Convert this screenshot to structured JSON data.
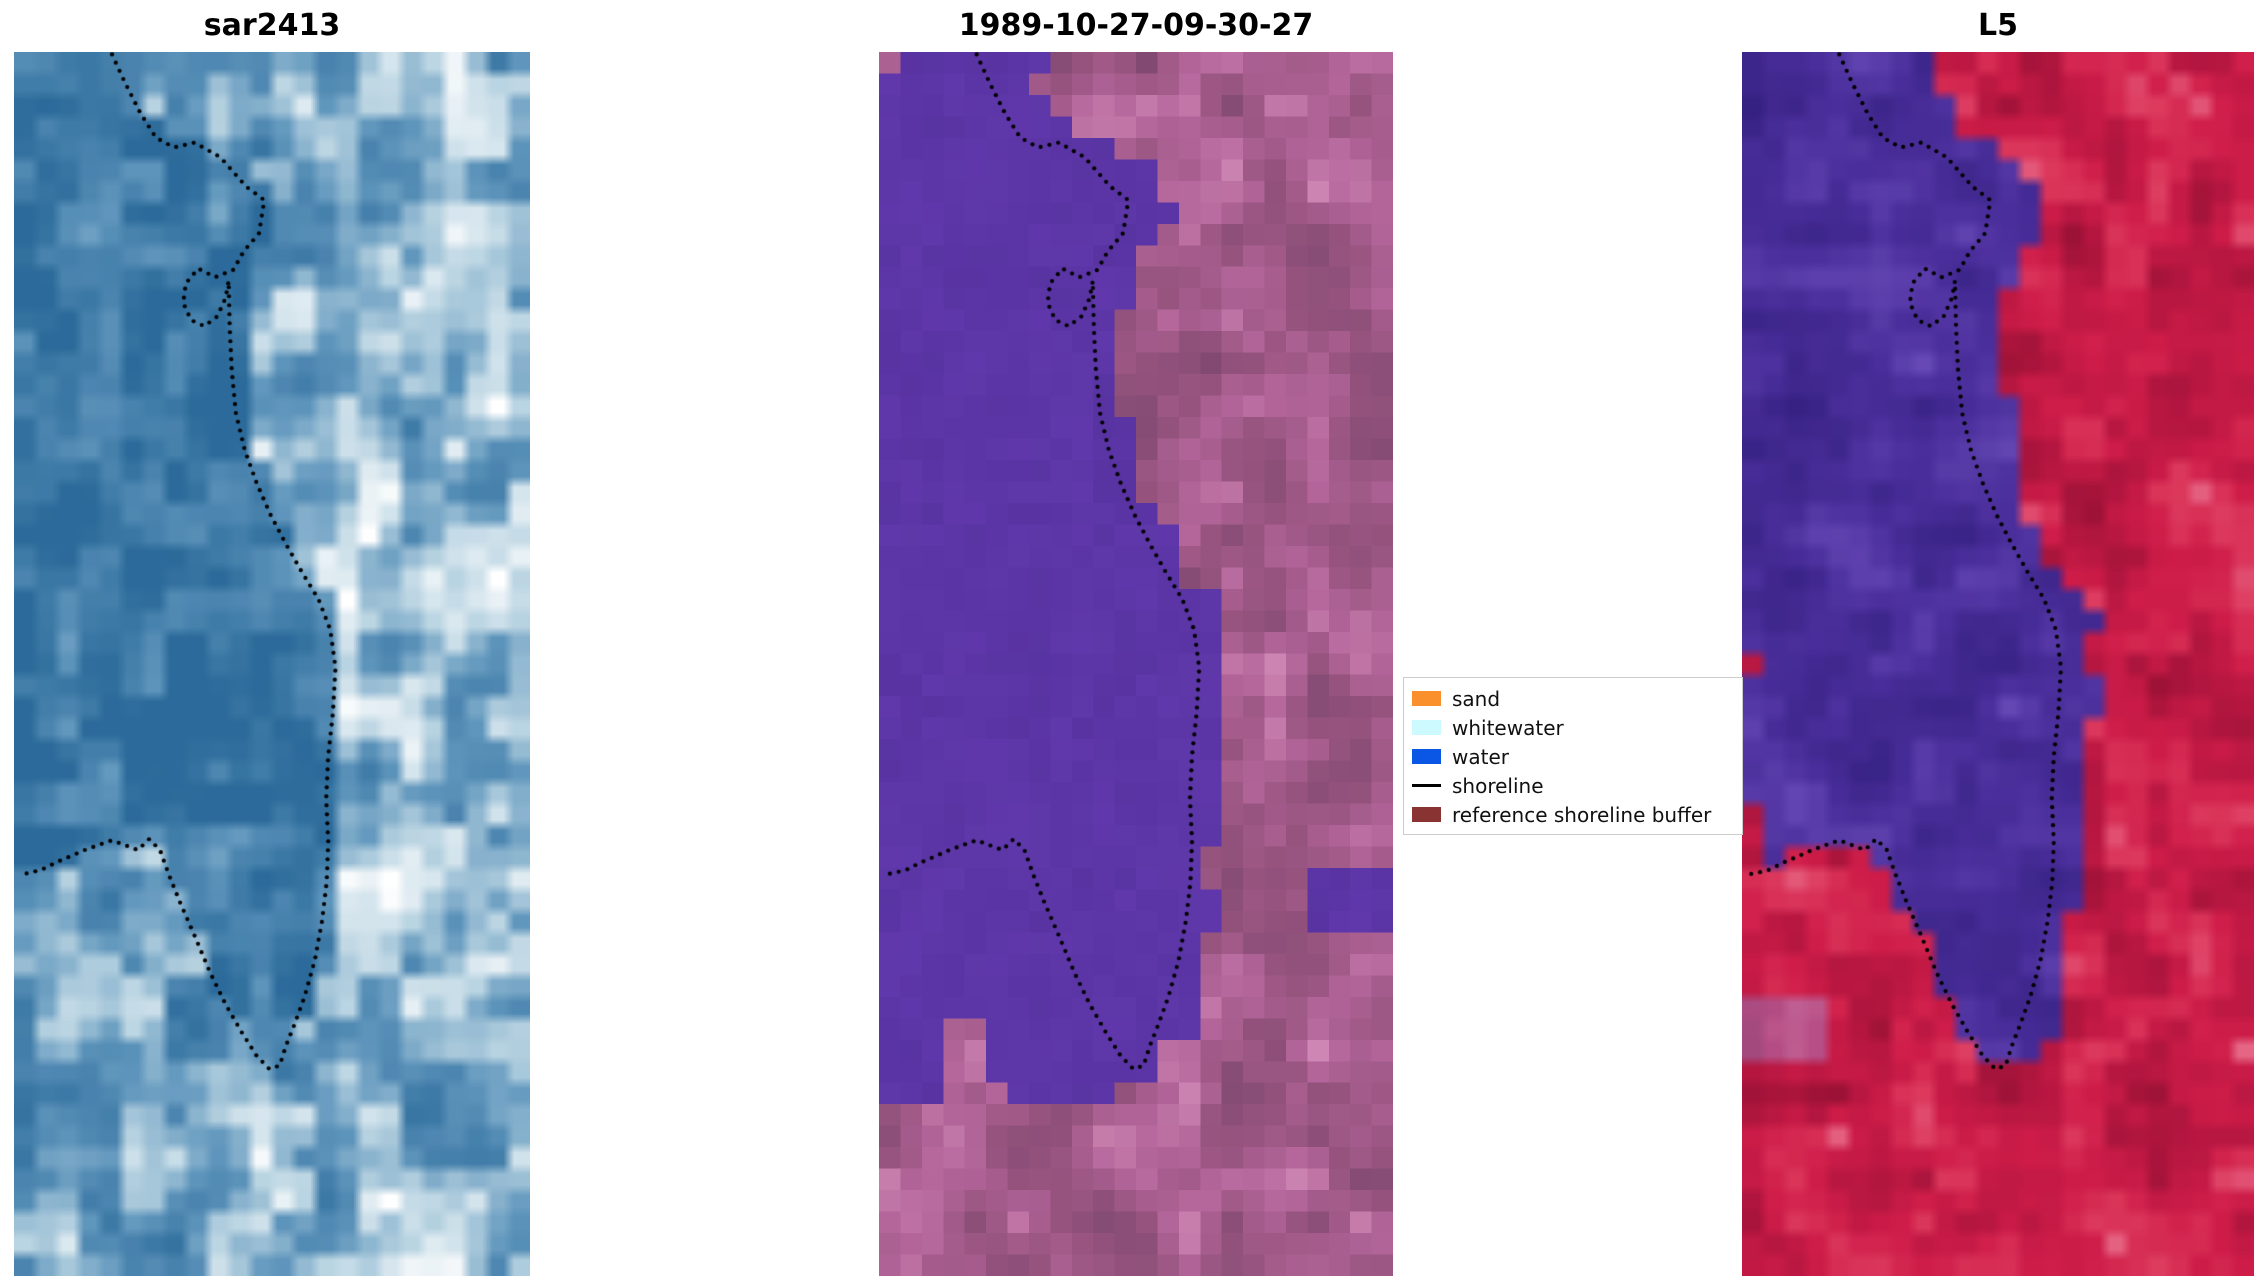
{
  "chart_data": {
    "type": "image-panels",
    "title": "",
    "panels": [
      {
        "title": "sar2413"
      },
      {
        "title": "1989-10-27-09-30-27"
      },
      {
        "title": "L5"
      }
    ],
    "legend": {
      "position": "center-right between panel 2 and 3",
      "items": [
        {
          "label": "sand",
          "swatch": "#f9902c",
          "kind": "patch"
        },
        {
          "label": "whitewater",
          "swatch": "#ccfaff",
          "kind": "patch"
        },
        {
          "label": "water",
          "swatch": "#0b57e5",
          "kind": "patch"
        },
        {
          "label": "shoreline",
          "swatch": "#000000",
          "kind": "line"
        },
        {
          "label": "reference shoreline buffer",
          "swatch": "#8a3333",
          "kind": "patch"
        }
      ]
    },
    "shoreline": {
      "color": "#000000",
      "dot_radius": 2.1,
      "dot_spacing": 9
    }
  },
  "render": {
    "sar_stops": [
      [
        0,
        "#2b6a9a"
      ],
      [
        0.42,
        "#5e95bc"
      ],
      [
        0.72,
        "#b9d4e2"
      ],
      [
        1,
        "#ffffff"
      ]
    ],
    "class_water": [
      "#5833a1",
      "#6139ad"
    ],
    "class_land_stops": [
      [
        0,
        "#7c4870"
      ],
      [
        0.4,
        "#97547f"
      ],
      [
        0.7,
        "#b4669b"
      ],
      [
        1,
        "#d08ab6"
      ]
    ],
    "l5_land_stops": [
      [
        0,
        "#8e1030"
      ],
      [
        0.35,
        "#b51741"
      ],
      [
        0.6,
        "#cf1d49"
      ],
      [
        0.85,
        "#dd3a5e"
      ],
      [
        1,
        "#e86f8d"
      ]
    ],
    "l5_water_stops": [
      [
        0,
        "#33207f"
      ],
      [
        0.5,
        "#4b2f9c"
      ],
      [
        1,
        "#6f51bd"
      ]
    ],
    "l5_lavender": "#a07fc2",
    "boundary_main": [
      [
        0.19,
        0.002
      ],
      [
        0.215,
        0.025
      ],
      [
        0.245,
        0.05
      ],
      [
        0.275,
        0.07
      ],
      [
        0.31,
        0.078
      ],
      [
        0.35,
        0.074
      ],
      [
        0.4,
        0.086
      ],
      [
        0.45,
        0.11
      ],
      [
        0.485,
        0.121
      ],
      [
        0.475,
        0.148
      ],
      [
        0.445,
        0.163
      ],
      [
        0.425,
        0.178
      ],
      [
        0.418,
        0.225
      ],
      [
        0.422,
        0.26
      ],
      [
        0.43,
        0.295
      ],
      [
        0.447,
        0.325
      ],
      [
        0.47,
        0.352
      ],
      [
        0.497,
        0.378
      ],
      [
        0.527,
        0.402
      ],
      [
        0.558,
        0.425
      ],
      [
        0.59,
        0.447
      ],
      [
        0.613,
        0.472
      ],
      [
        0.623,
        0.503
      ],
      [
        0.618,
        0.54
      ],
      [
        0.609,
        0.575
      ],
      [
        0.605,
        0.61
      ],
      [
        0.609,
        0.645
      ],
      [
        0.606,
        0.678
      ],
      [
        0.597,
        0.71
      ],
      [
        0.583,
        0.742
      ],
      [
        0.563,
        0.772
      ],
      [
        0.543,
        0.795
      ],
      [
        0.527,
        0.812
      ],
      [
        0.515,
        0.828
      ],
      [
        0.495,
        0.831
      ]
    ],
    "boundary_arc": [
      [
        0.47,
        0.82
      ],
      [
        0.44,
        0.8
      ],
      [
        0.41,
        0.778
      ],
      [
        0.38,
        0.752
      ],
      [
        0.35,
        0.722
      ],
      [
        0.322,
        0.695
      ],
      [
        0.3,
        0.672
      ],
      [
        0.283,
        0.652
      ],
      [
        0.262,
        0.643
      ],
      [
        0.24,
        0.652
      ],
      [
        0.215,
        0.648
      ],
      [
        0.19,
        0.644
      ],
      [
        0.163,
        0.648
      ],
      [
        0.137,
        0.652
      ],
      [
        0.11,
        0.657
      ],
      [
        0.082,
        0.662
      ],
      [
        0.054,
        0.668
      ],
      [
        0.027,
        0.671
      ],
      [
        0.008,
        0.672
      ]
    ],
    "class_bottom": [
      [
        0.5,
        0.845
      ],
      [
        0.4,
        0.868
      ],
      [
        0.27,
        0.862
      ],
      [
        0.21,
        0.82
      ],
      [
        0.17,
        0.775
      ],
      [
        0.13,
        0.79
      ],
      [
        0.125,
        0.85
      ],
      [
        0.07,
        0.858
      ],
      [
        0.0,
        0.848
      ]
    ],
    "dot_path": [
      [
        0.19,
        0.002
      ],
      [
        0.215,
        0.025
      ],
      [
        0.245,
        0.05
      ],
      [
        0.275,
        0.07
      ],
      [
        0.31,
        0.078
      ],
      [
        0.35,
        0.074
      ],
      [
        0.4,
        0.086
      ],
      [
        0.45,
        0.11
      ],
      [
        0.485,
        0.121
      ],
      [
        0.475,
        0.148
      ],
      [
        0.445,
        0.163
      ],
      [
        0.425,
        0.178
      ],
      [
        0.39,
        0.184
      ],
      [
        0.357,
        0.177
      ],
      [
        0.333,
        0.189
      ],
      [
        0.328,
        0.205
      ],
      [
        0.343,
        0.219
      ],
      [
        0.369,
        0.224
      ],
      [
        0.394,
        0.216
      ],
      [
        0.41,
        0.201
      ],
      [
        0.416,
        0.187
      ],
      [
        0.418,
        0.225
      ],
      [
        0.422,
        0.26
      ],
      [
        0.43,
        0.295
      ],
      [
        0.447,
        0.325
      ],
      [
        0.47,
        0.352
      ],
      [
        0.497,
        0.378
      ],
      [
        0.527,
        0.402
      ],
      [
        0.558,
        0.425
      ],
      [
        0.59,
        0.447
      ],
      [
        0.613,
        0.472
      ],
      [
        0.623,
        0.503
      ],
      [
        0.618,
        0.54
      ],
      [
        0.609,
        0.575
      ],
      [
        0.605,
        0.61
      ],
      [
        0.609,
        0.645
      ],
      [
        0.606,
        0.678
      ],
      [
        0.597,
        0.71
      ],
      [
        0.583,
        0.742
      ],
      [
        0.563,
        0.772
      ],
      [
        0.543,
        0.795
      ],
      [
        0.527,
        0.812
      ],
      [
        0.515,
        0.828
      ],
      [
        0.495,
        0.831
      ],
      [
        0.47,
        0.82
      ],
      [
        0.44,
        0.8
      ],
      [
        0.41,
        0.778
      ],
      [
        0.38,
        0.752
      ],
      [
        0.35,
        0.722
      ],
      [
        0.322,
        0.695
      ],
      [
        0.3,
        0.672
      ],
      [
        0.283,
        0.652
      ],
      [
        0.262,
        0.643
      ],
      [
        0.24,
        0.652
      ],
      [
        0.215,
        0.648
      ],
      [
        0.19,
        0.644
      ],
      [
        0.163,
        0.648
      ],
      [
        0.137,
        0.652
      ],
      [
        0.11,
        0.657
      ],
      [
        0.082,
        0.662
      ],
      [
        0.054,
        0.668
      ],
      [
        0.027,
        0.671
      ],
      [
        0.008,
        0.672
      ]
    ]
  }
}
